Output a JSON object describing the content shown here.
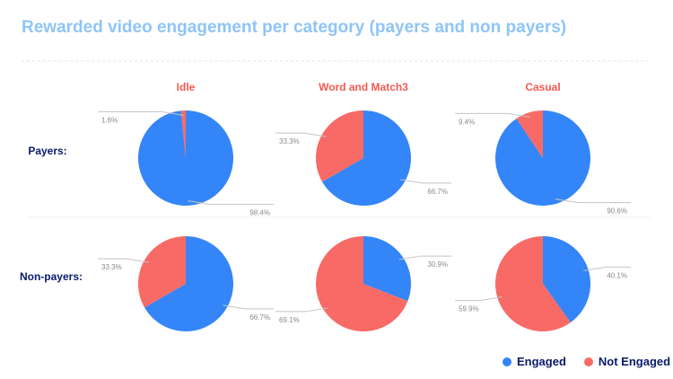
{
  "title": "Rewarded video engagement per category (payers and non payers)",
  "chart_data": {
    "type": "pie",
    "title": "Rewarded video engagement per category (payers and non payers)",
    "columns": [
      "Idle",
      "Word and Match3",
      "Casual"
    ],
    "rows": [
      "Payers:",
      "Non-payers:"
    ],
    "labels": [
      "Engaged",
      "Not Engaged"
    ],
    "charts": [
      {
        "column": "Idle",
        "row": "Payers:",
        "values": [
          98.4,
          1.6
        ],
        "labels_text": [
          "98.4%",
          "1.6%"
        ]
      },
      {
        "column": "Word and Match3",
        "row": "Payers:",
        "values": [
          66.7,
          33.3
        ],
        "labels_text": [
          "66.7%",
          "33.3%"
        ]
      },
      {
        "column": "Casual",
        "row": "Payers:",
        "values": [
          90.6,
          9.4
        ],
        "labels_text": [
          "90.6%",
          "9.4%"
        ]
      },
      {
        "column": "Idle",
        "row": "Non-payers:",
        "values": [
          66.7,
          33.3
        ],
        "labels_text": [
          "66.7%",
          "33.3%"
        ]
      },
      {
        "column": "Word and Match3",
        "row": "Non-payers:",
        "values": [
          30.9,
          69.1
        ],
        "labels_text": [
          "30.9%",
          "69.1%"
        ]
      },
      {
        "column": "Casual",
        "row": "Non-payers:",
        "values": [
          40.1,
          59.9
        ],
        "labels_text": [
          "40.1%",
          "59.9%"
        ]
      }
    ],
    "colors": {
      "Engaged": "#3485f7",
      "Not Engaged": "#f86a66"
    },
    "legend_position": "bottom-right"
  },
  "colors": {
    "title": "#8ec5f7",
    "header": "#f25b52",
    "row_label": "#0a1a6b",
    "value_label": "#8a8a8a",
    "leader": "#c4c4c4",
    "divider": "#e4e4e4"
  }
}
